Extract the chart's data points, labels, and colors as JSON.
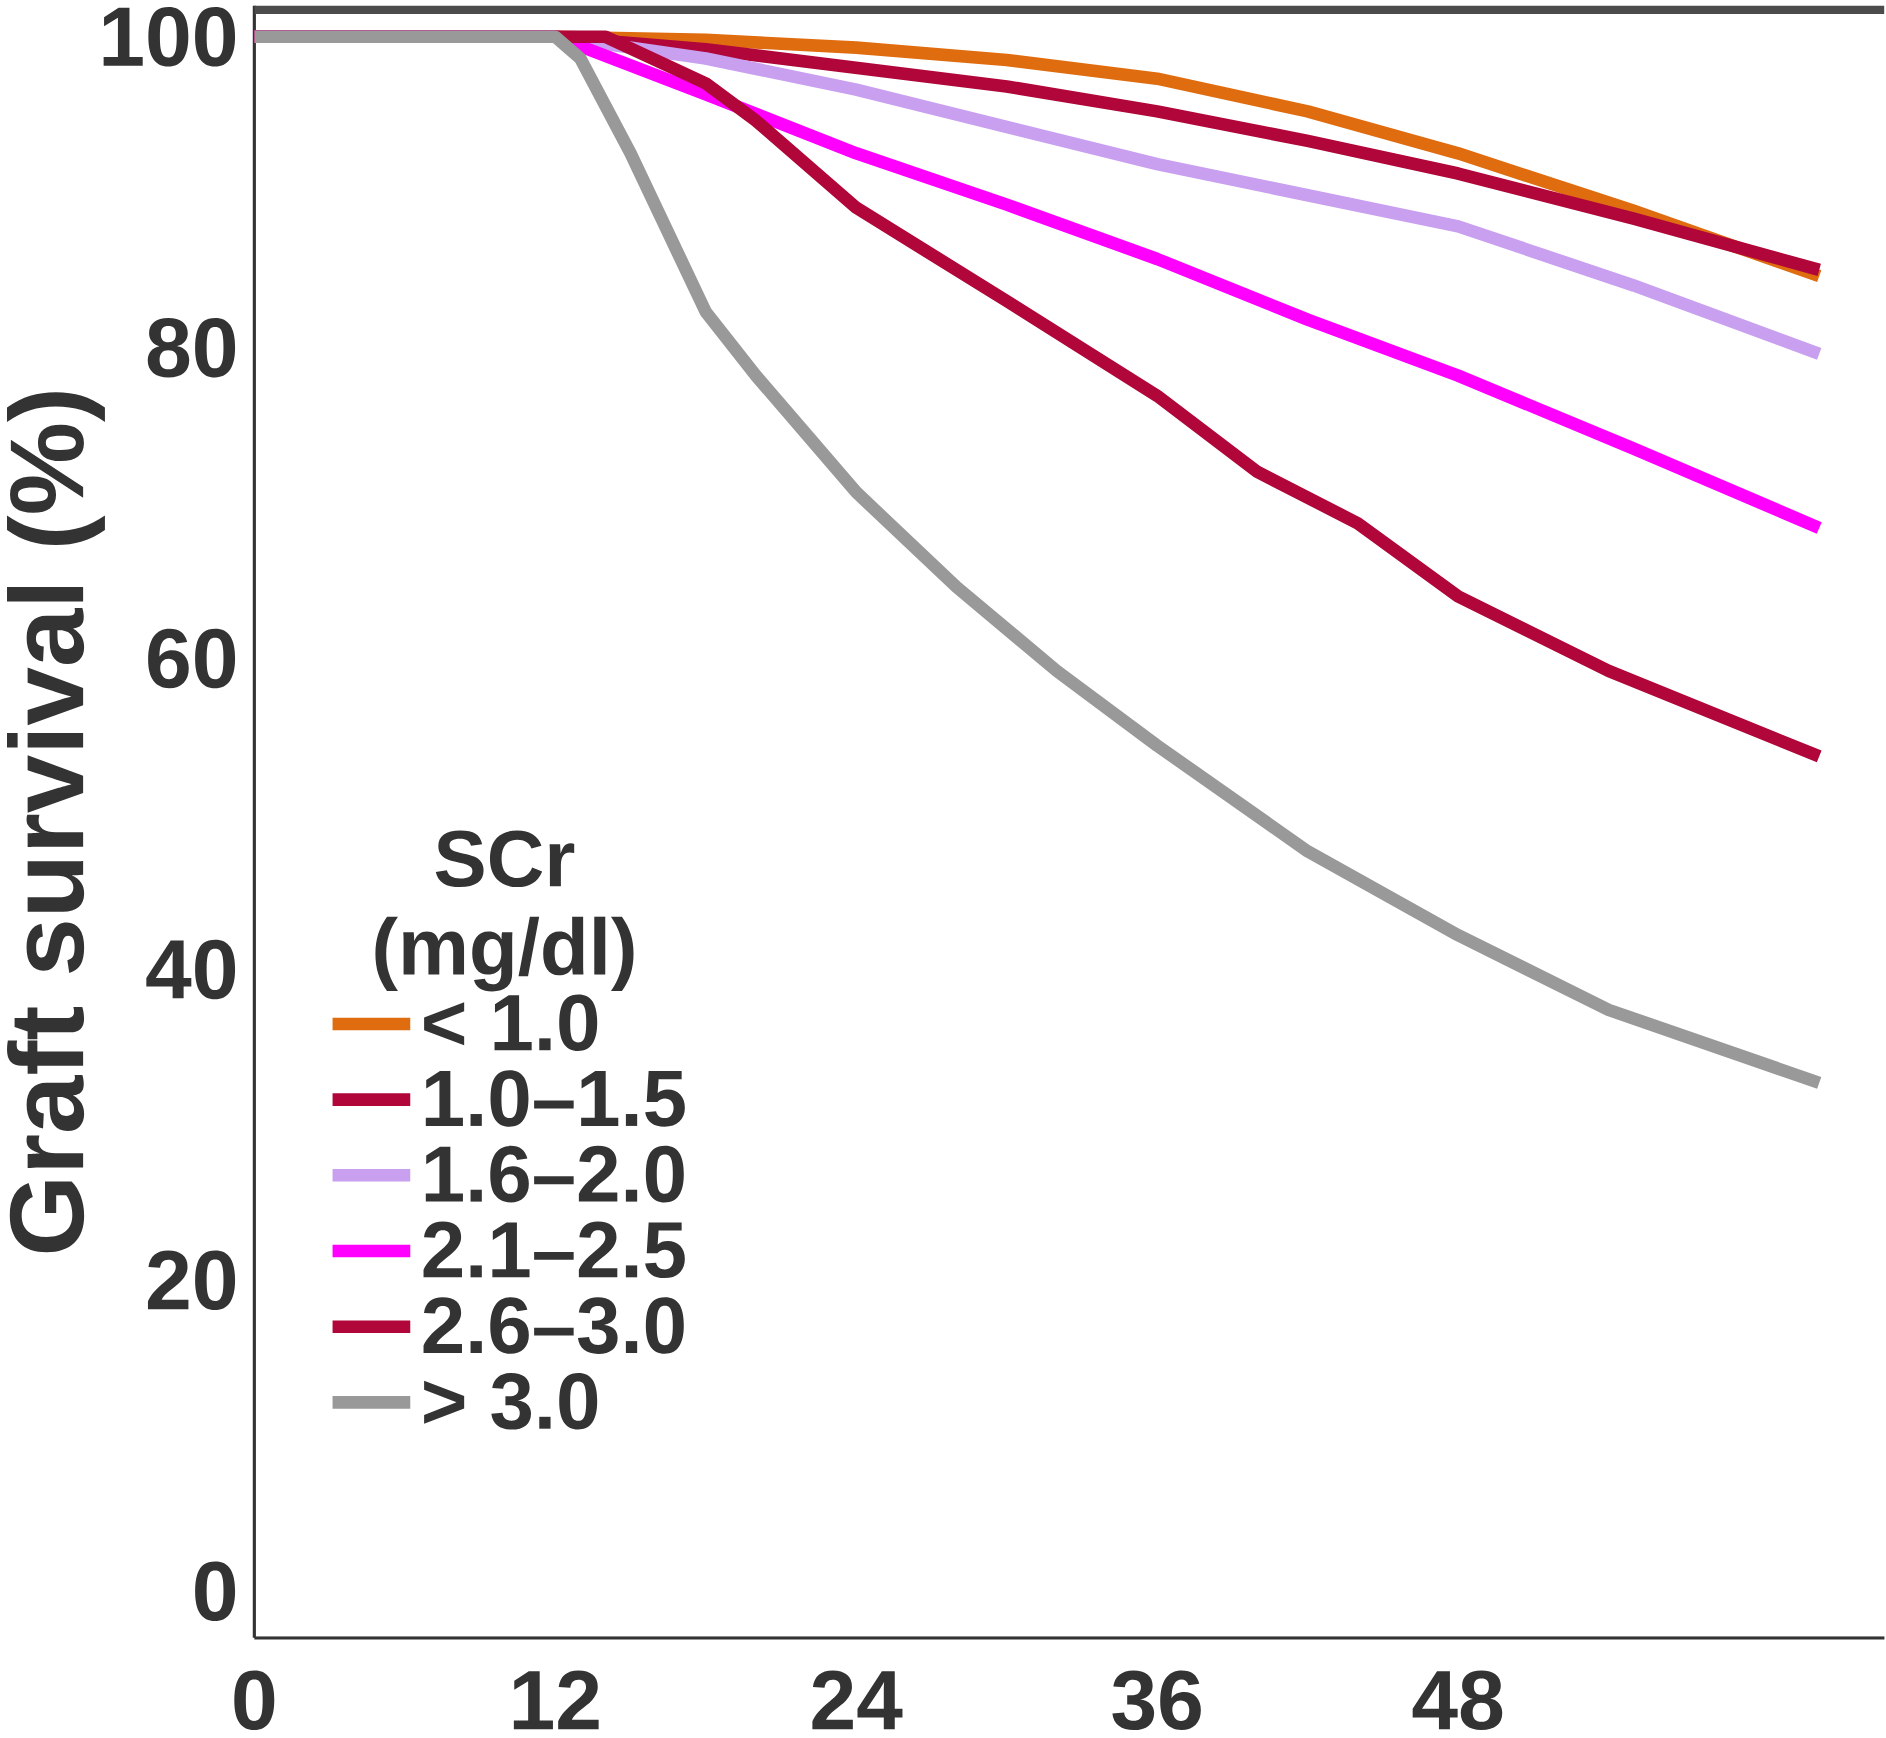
{
  "chart_data": {
    "type": "line",
    "ylabel": "Graft survival (%)",
    "legend_title": "SCr (mg/dl)",
    "xlim": [
      0,
      65
    ],
    "ylim": [
      -3,
      102
    ],
    "xticks": [
      0,
      12,
      24,
      36,
      48
    ],
    "yticks": [
      0,
      20,
      40,
      60,
      80,
      100
    ],
    "legend": "left",
    "grid": false,
    "series": [
      {
        "name": "< 1.0",
        "color": "#e06c10",
        "x": [
          0,
          12,
          18,
          24,
          30,
          36,
          42,
          48,
          55,
          62.4
        ],
        "values": [
          100,
          100,
          99.8,
          99.3,
          98.5,
          97.3,
          95.2,
          92.5,
          88.8,
          84.6
        ]
      },
      {
        "name": "1.0–1.5",
        "color": "#b0063a",
        "x": [
          0,
          12,
          18,
          24,
          30,
          36,
          42,
          48,
          55,
          62.4
        ],
        "values": [
          100,
          100,
          99.2,
          98,
          96.8,
          95.2,
          93.3,
          91.2,
          88.3,
          85
        ]
      },
      {
        "name": "1.6–2.0",
        "color": "#c9a0f0",
        "x": [
          0,
          12,
          18,
          24,
          30,
          36,
          42,
          48,
          55,
          62.4
        ],
        "values": [
          100,
          100,
          98.6,
          96.6,
          94.2,
          91.8,
          89.8,
          87.8,
          84,
          79.6
        ]
      },
      {
        "name": "2.1–2.5",
        "color": "#ff00ff",
        "x": [
          0,
          12,
          18,
          24,
          30,
          36,
          42,
          48,
          55,
          62.4
        ],
        "values": [
          100,
          100,
          96.3,
          92.5,
          89.2,
          85.7,
          81.8,
          78.2,
          73.5,
          68.4
        ]
      },
      {
        "name": "2.6–3.0",
        "color": "#b0063a",
        "x": [
          0,
          12,
          14,
          18,
          20,
          24,
          30,
          36,
          40,
          44,
          48,
          54,
          62.4
        ],
        "values": [
          100,
          100,
          100,
          97,
          94.6,
          89,
          83,
          76.9,
          72,
          68.7,
          64,
          59.2,
          53.7
        ]
      },
      {
        "name": "> 3.0",
        "color": "#999999",
        "x": [
          0,
          12,
          13,
          15,
          18,
          20,
          24,
          28,
          32,
          36,
          42,
          48,
          54,
          62.4
        ],
        "values": [
          100,
          100,
          98.6,
          92.5,
          82.3,
          78.2,
          70.7,
          64.6,
          59.2,
          54.4,
          47.6,
          42.2,
          37.4,
          32.7
        ]
      }
    ]
  }
}
